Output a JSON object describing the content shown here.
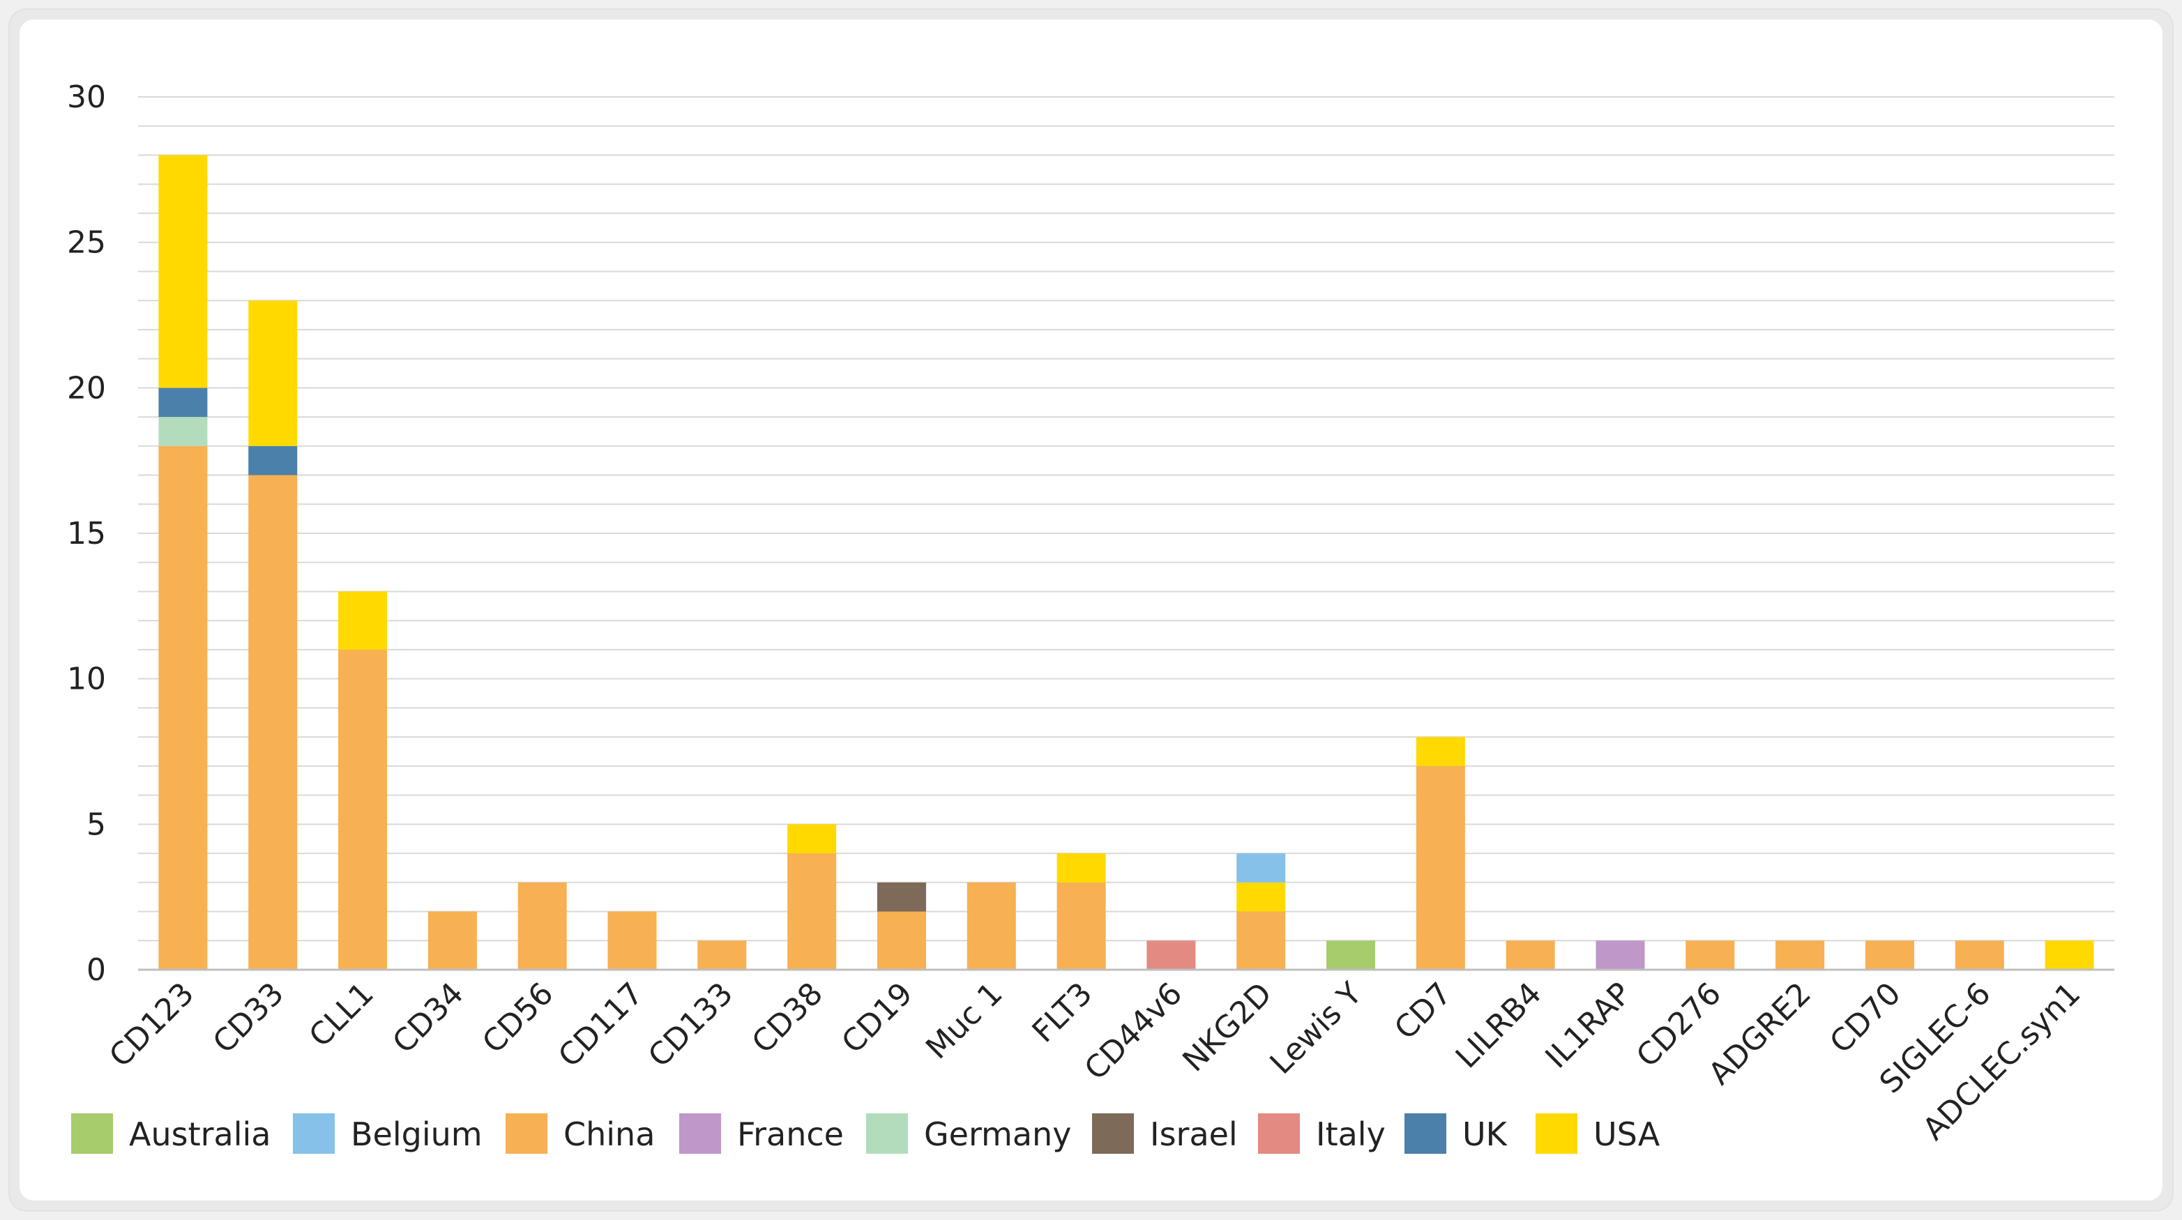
{
  "chart_data": {
    "type": "bar",
    "stacked": true,
    "title": "",
    "xlabel": "",
    "ylabel": "",
    "ylim": [
      0,
      30
    ],
    "yticks": [
      0,
      5,
      10,
      15,
      20,
      25,
      30
    ],
    "minor_gridlines_every": 1,
    "grid": true,
    "legend_position": "bottom",
    "categories": [
      "CD123",
      "CD33",
      "CLL1",
      "CD34",
      "CD56",
      "CD117",
      "CD133",
      "CD38",
      "CD19",
      "Muc 1",
      "FLT3",
      "CD44v6",
      "NKG2D",
      "Lewis Y",
      "CD7",
      "LILRB4",
      "IL1RAP",
      "CD276",
      "ADGRE2",
      "CD70",
      "SIGLEC-6",
      "ADCLEC.syn1"
    ],
    "series": [
      {
        "name": "Australia",
        "color": "#a6cc6b",
        "values": [
          0,
          0,
          0,
          0,
          0,
          0,
          0,
          0,
          0,
          0,
          0,
          0,
          0,
          1,
          0,
          0,
          0,
          0,
          0,
          0,
          0,
          0
        ]
      },
      {
        "name": "Belgium",
        "color": "#85c1e9",
        "values": [
          0,
          0,
          0,
          0,
          0,
          0,
          0,
          0,
          0,
          0,
          0,
          0,
          1,
          0,
          0,
          0,
          0,
          0,
          0,
          0,
          0,
          0
        ]
      },
      {
        "name": "China",
        "color": "#f7b052",
        "values": [
          18,
          17,
          11,
          2,
          3,
          2,
          1,
          4,
          2,
          3,
          3,
          0,
          2,
          0,
          7,
          1,
          0,
          1,
          1,
          1,
          1,
          0
        ]
      },
      {
        "name": "France",
        "color": "#bf97c8",
        "values": [
          0,
          0,
          0,
          0,
          0,
          0,
          0,
          0,
          0,
          0,
          0,
          0,
          0,
          0,
          0,
          0,
          1,
          0,
          0,
          0,
          0,
          0
        ]
      },
      {
        "name": "Germany",
        "color": "#b3dcbd",
        "values": [
          1,
          0,
          0,
          0,
          0,
          0,
          0,
          0,
          0,
          0,
          0,
          0,
          0,
          0,
          0,
          0,
          0,
          0,
          0,
          0,
          0,
          0
        ]
      },
      {
        "name": "Israel",
        "color": "#7d6a58",
        "values": [
          0,
          0,
          0,
          0,
          0,
          0,
          0,
          0,
          1,
          0,
          0,
          0,
          0,
          0,
          0,
          0,
          0,
          0,
          0,
          0,
          0,
          0
        ]
      },
      {
        "name": "Italy",
        "color": "#e38a82",
        "values": [
          0,
          0,
          0,
          0,
          0,
          0,
          0,
          0,
          0,
          0,
          0,
          1,
          0,
          0,
          0,
          0,
          0,
          0,
          0,
          0,
          0,
          0
        ]
      },
      {
        "name": "UK",
        "color": "#4a80a9",
        "values": [
          1,
          1,
          0,
          0,
          0,
          0,
          0,
          0,
          0,
          0,
          0,
          0,
          0,
          0,
          0,
          0,
          0,
          0,
          0,
          0,
          0,
          0
        ]
      },
      {
        "name": "USA",
        "color": "#ffd900",
        "values": [
          8,
          5,
          2,
          0,
          0,
          0,
          0,
          1,
          0,
          0,
          1,
          0,
          1,
          0,
          1,
          0,
          0,
          0,
          0,
          0,
          0,
          1
        ]
      }
    ],
    "stack_order": [
      "Australia",
      "China",
      "Germany",
      "UK",
      "Italy",
      "France",
      "Israel",
      "USA",
      "Belgium"
    ]
  }
}
